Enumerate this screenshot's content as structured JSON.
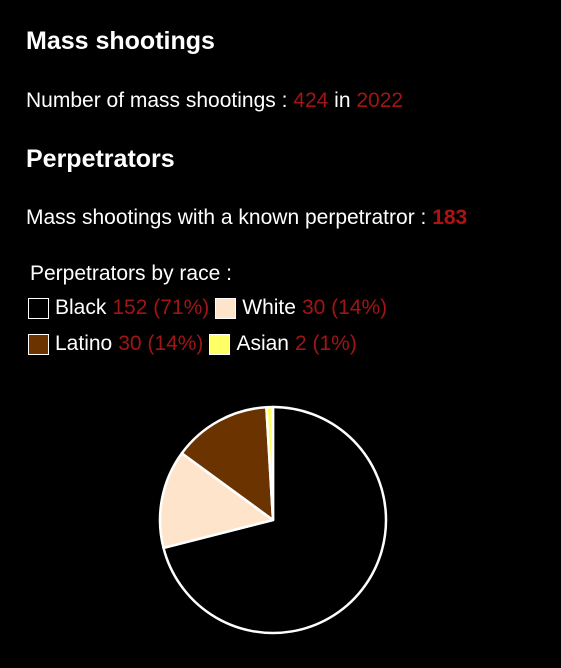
{
  "section1": {
    "title": "Mass shootings",
    "line_prefix": "Number of mass shootings : ",
    "count": "424",
    "in_word": " in ",
    "year": "2022"
  },
  "section2": {
    "title": "Perpetrators",
    "line_prefix": "Mass shootings with a known perpetratror : ",
    "known_count": "183"
  },
  "legend": {
    "title": "Perpetrators by race :",
    "items": [
      {
        "name": "Black",
        "value_text": "152 (71%)",
        "color": "#000000"
      },
      {
        "name": "White",
        "value_text": "30 (14%)",
        "color": "#ffe4cc"
      },
      {
        "name": "Latino",
        "value_text": "30 (14%)",
        "color": "#6b3300"
      },
      {
        "name": "Asian",
        "value_text": "2 (1%)",
        "color": "#ffff66"
      }
    ]
  },
  "chart_data": {
    "type": "pie",
    "categories": [
      "Black",
      "White",
      "Latino",
      "Asian"
    ],
    "values": [
      152,
      30,
      30,
      2
    ],
    "percent_labels": [
      "71%",
      "14%",
      "14%",
      "1%"
    ],
    "colors": [
      "#000000",
      "#ffe4cc",
      "#6b3300",
      "#ffff66"
    ],
    "stroke_color": "#ffffff",
    "legend_position": "top"
  }
}
